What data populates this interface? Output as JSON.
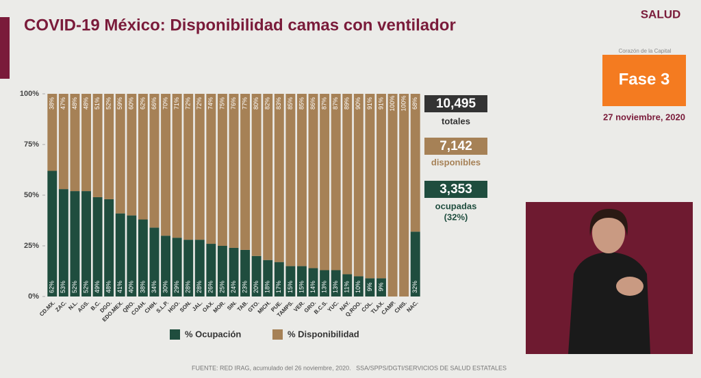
{
  "header": {
    "title": "COVID-19 México: Disponibilidad camas con ventilador",
    "logo": "SALUD",
    "logo_subtitle": "Corazón de la Capital",
    "phase": "Fase 3",
    "date": "27 noviembre, 2020"
  },
  "summary": {
    "total": "10,495",
    "total_label": "totales",
    "available": "7,142",
    "available_label": "disponibles",
    "occupied": "3,353",
    "occupied_label": "ocupadas",
    "occupied_pct": "(32%)"
  },
  "footer": "FUENTE: RED IRAG, acumulado del 26 noviembre, 2020.   SSA/SPPS/DGTI/SERVICIOS DE SALUD ESTATALES",
  "chart_data": {
    "type": "stacked_bar",
    "categories": [
      "CD.MX.",
      "ZAC.",
      "N.L.",
      "AGS.",
      "B.C.",
      "DGO.",
      "EDO.MEX.",
      "QRO.",
      "COAH.",
      "CHIH.",
      "S.L.P.",
      "HGO.",
      "SON.",
      "JAL.",
      "OAX.",
      "MOR.",
      "SIN.",
      "TAB.",
      "GTO.",
      "MICH.",
      "PUE.",
      "TAMPS.",
      "VER.",
      "GRO.",
      "B.C.S.",
      "YUC.",
      "NAY.",
      "Q.ROO.",
      "COL.",
      "TLAX.",
      "CAMP.",
      "CHIS.",
      "NAC."
    ],
    "series": [
      {
        "name": "% Ocupación",
        "color": "#1f4d3e",
        "values": [
          62,
          53,
          52,
          52,
          49,
          48,
          41,
          40,
          38,
          34,
          30,
          29,
          28,
          28,
          26,
          25,
          24,
          23,
          20,
          18,
          17,
          15,
          15,
          14,
          13,
          13,
          11,
          10,
          9,
          9,
          0,
          0,
          32
        ],
        "value_labels": [
          "62%",
          "53%",
          "52%",
          "52%",
          "49%",
          "48%",
          "41%",
          "40%",
          "38%",
          "34%",
          "30%",
          "29%",
          "28%",
          "28%",
          "26%",
          "25%",
          "24%",
          "23%",
          "20%",
          "18%",
          "17%",
          "15%",
          "15%",
          "14%",
          "13%",
          "13%",
          "11%",
          "10%",
          "9%",
          "9%",
          "0%",
          "0%",
          "32%"
        ]
      },
      {
        "name": "% Disponibilidad",
        "color": "#a68156",
        "values": [
          38,
          47,
          48,
          48,
          51,
          52,
          59,
          60,
          62,
          66,
          70,
          71,
          72,
          72,
          74,
          75,
          76,
          77,
          80,
          82,
          83,
          85,
          85,
          86,
          87,
          87,
          89,
          90,
          91,
          91,
          100,
          100,
          68
        ],
        "value_labels": [
          "38%",
          "47%",
          "48%",
          "48%",
          "51%",
          "52%",
          "59%",
          "60%",
          "62%",
          "66%",
          "70%",
          "71%",
          "72%",
          "72%",
          "74%",
          "75%",
          "76%",
          "77%",
          "80%",
          "82%",
          "83%",
          "85%",
          "85%",
          "86%",
          "87%",
          "87%",
          "89%",
          "90%",
          "91%",
          "91%",
          "100%",
          "100%",
          "68%"
        ]
      }
    ],
    "ylim": [
      0,
      100
    ],
    "yticks": [
      {
        "value": 0,
        "label": "0%"
      },
      {
        "value": 25,
        "label": "25%"
      },
      {
        "value": 50,
        "label": "50%"
      },
      {
        "value": 75,
        "label": "75%"
      },
      {
        "value": 100,
        "label": "100%"
      }
    ]
  }
}
